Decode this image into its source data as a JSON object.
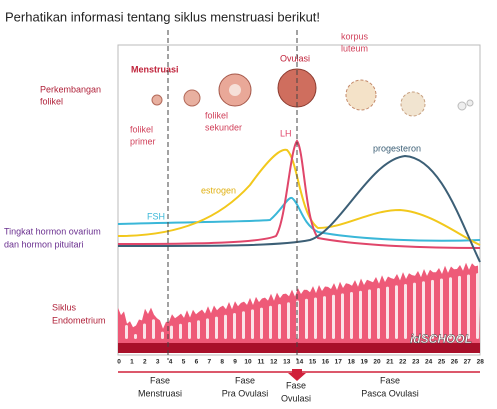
{
  "title": "Perhatikan informasi tentang siklus menstruasi berikut!",
  "labels": {
    "follicle_dev": [
      "Perkembangan",
      "folikel"
    ],
    "hormone_level": [
      "Tingkat hormon ovarium",
      "dan hormon pituitari"
    ],
    "endometrium": [
      "Siklus",
      "Endometrium"
    ]
  },
  "stages": {
    "menstruation": "Menstruasi",
    "primary": [
      "folikel",
      "primer"
    ],
    "secondary": [
      "folikel",
      "sekunder"
    ],
    "ovulation": "Ovulasi",
    "corpus_luteum": [
      "korpus",
      "luteum"
    ]
  },
  "hormones": {
    "lh": "LH",
    "progesterone": "progesteron",
    "estrogen": "estrogen",
    "fsh": "FSH"
  },
  "days": [
    0,
    1,
    2,
    3,
    4,
    5,
    6,
    7,
    8,
    9,
    10,
    11,
    12,
    13,
    14,
    15,
    16,
    17,
    18,
    19,
    20,
    21,
    22,
    23,
    24,
    25,
    26,
    27,
    28
  ],
  "phases": [
    [
      "Fase",
      "Menstruasi"
    ],
    [
      "Fase",
      "Pra Ovulasi"
    ],
    [
      "Fase",
      "Ovulasi"
    ],
    [
      "Fase",
      "Pasca Ovulasi"
    ]
  ],
  "watermark": "idSCHOOL"
}
